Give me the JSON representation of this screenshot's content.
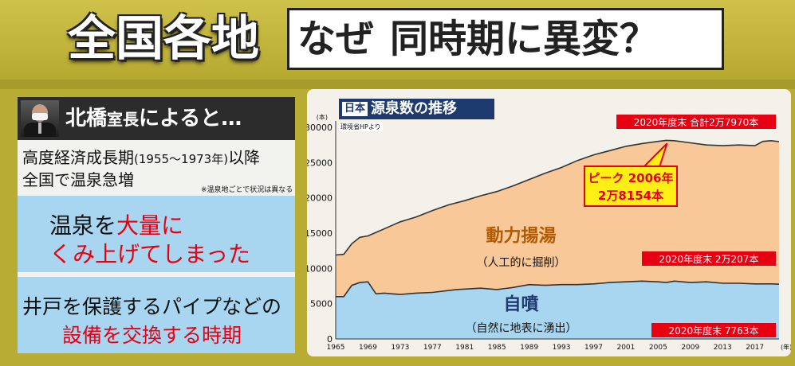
{
  "header": {
    "title_left": "全国各地",
    "title_right_a": "なぜ",
    "title_right_b": "同時期に異変？"
  },
  "left_panel": {
    "host_name": "北橋",
    "host_role": "室長",
    "host_suffix": "によると…",
    "period_a": "高度経済成長期",
    "period_paren": "(1955～1973年)",
    "period_b": "以降",
    "surge": "全国で温泉急増",
    "note": "※温泉地ごとで状況は異なる",
    "reason1_a": "温泉を",
    "reason1_red": "大量に",
    "reason1_line2": "くみ上げてしまった",
    "reason2_line1": "井戸を保護するパイプなどの",
    "reason2_line2": "設備を交換する時期"
  },
  "chart_data": {
    "type": "area",
    "title_tag": "日本",
    "title": "源泉数の推移",
    "source": "環境省HPより",
    "y_unit": "(本)",
    "x_unit": "(年)",
    "ylim": [
      0,
      30000
    ],
    "yticks": [
      0,
      5000,
      10000,
      15000,
      20000,
      25000,
      30000
    ],
    "xlim": [
      1965,
      2020
    ],
    "xticks": [
      1965,
      1969,
      1973,
      1977,
      1981,
      1985,
      1989,
      1993,
      1997,
      2001,
      2005,
      2009,
      2013,
      2017
    ],
    "x_tick_labels": [
      "1965",
      "1969",
      "1973",
      "1977",
      "1981",
      "1985",
      "1989",
      "1993",
      "1997",
      "2001",
      "2005",
      "2009",
      "2013",
      "2017"
    ],
    "series": [
      {
        "name": "自噴",
        "sub": "（自然に地表に湧出）",
        "color": "#a8d6f0",
        "x": [
          1965,
          1966,
          1967,
          1968,
          1969,
          1970,
          1971,
          1972,
          1973,
          1975,
          1977,
          1980,
          1983,
          1985,
          1987,
          1989,
          1991,
          1993,
          1995,
          1997,
          1999,
          2001,
          2003,
          2005,
          2006,
          2007,
          2009,
          2011,
          2013,
          2015,
          2017,
          2019,
          2020
        ],
        "y": [
          6000,
          6000,
          7600,
          8000,
          8100,
          6400,
          6500,
          6400,
          6300,
          6500,
          6600,
          7000,
          7200,
          7000,
          7300,
          7700,
          7600,
          7700,
          7700,
          7800,
          8000,
          8100,
          8200,
          8100,
          8000,
          8200,
          8000,
          8100,
          7900,
          7900,
          7800,
          7800,
          7763
        ]
      },
      {
        "name": "合計",
        "color": "#f8c898",
        "x": [
          1965,
          1966,
          1967,
          1968,
          1969,
          1970,
          1971,
          1972,
          1973,
          1975,
          1977,
          1979,
          1981,
          1983,
          1985,
          1987,
          1989,
          1991,
          1993,
          1995,
          1997,
          1999,
          2001,
          2003,
          2005,
          2006,
          2007,
          2009,
          2011,
          2013,
          2015,
          2017,
          2018,
          2019,
          2020
        ],
        "y": [
          11900,
          12000,
          13500,
          14400,
          14600,
          15100,
          15600,
          16100,
          16600,
          17300,
          18200,
          19000,
          19600,
          20300,
          20900,
          21700,
          22600,
          23500,
          24300,
          25300,
          26100,
          26700,
          27300,
          27700,
          28000,
          28154,
          28100,
          27800,
          27500,
          27400,
          27500,
          27400,
          28000,
          28100,
          27970
        ]
      }
    ],
    "labels": {
      "powered": "動力揚湯",
      "powered_sub": "（人工的に掘削）",
      "natural": "自噴",
      "natural_sub": "（自然に地表に湧出）"
    },
    "annotations": {
      "total_2020": "2020年度末 合計2万7970本",
      "peak_a": "ピーク 2006年",
      "peak_b": "2万8154本",
      "powered_2020": "2020年度末 2万207本",
      "natural_2020": "2020年度末 7763本"
    },
    "colors": {
      "natural": "#a8d6f0",
      "powered": "#f8c898",
      "label_blue": "#1e3a6e",
      "label_orange": "#b35a00",
      "callout_red": "#e60012",
      "callout_yellow": "#ffef14"
    }
  }
}
